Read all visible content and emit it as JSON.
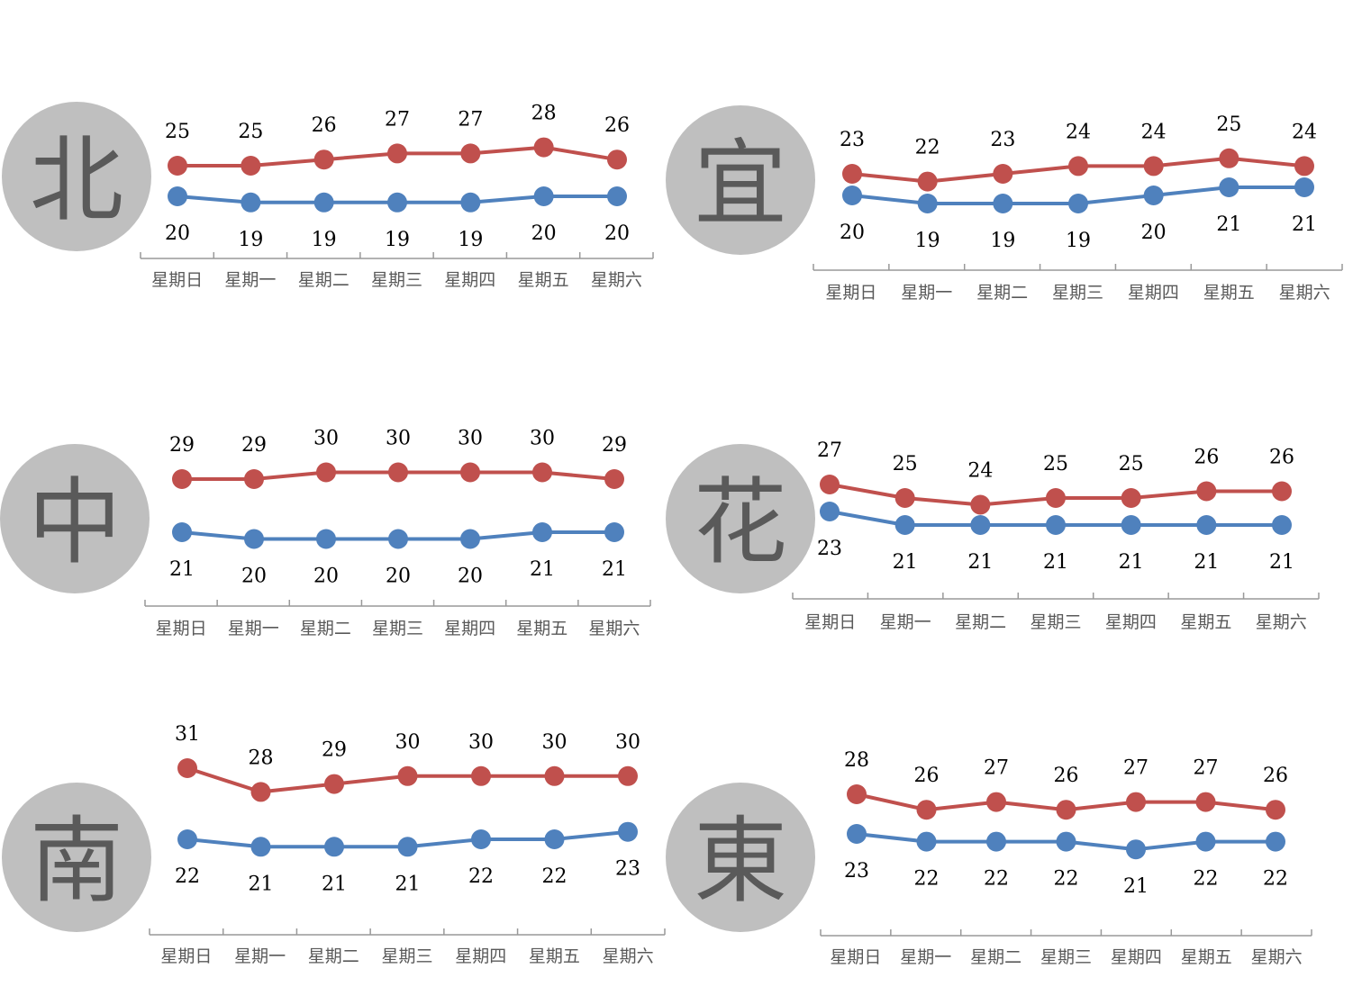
{
  "colors": {
    "high": "#c0504d",
    "low": "#4f81bd",
    "circle": "#bfbfbf",
    "axis": "#999999"
  },
  "chart_data": [
    {
      "type": "line",
      "region": "北",
      "categories": [
        "星期日",
        "星期一",
        "星期二",
        "星期三",
        "星期四",
        "星期五",
        "星期六"
      ],
      "series": [
        {
          "values": [
            25,
            25,
            26,
            27,
            27,
            28,
            26
          ]
        },
        {
          "values": [
            20,
            19,
            19,
            19,
            19,
            20,
            20
          ]
        }
      ]
    },
    {
      "type": "line",
      "region": "宜",
      "categories": [
        "星期日",
        "星期一",
        "星期二",
        "星期三",
        "星期四",
        "星期五",
        "星期六"
      ],
      "series": [
        {
          "values": [
            23,
            22,
            23,
            24,
            24,
            25,
            24
          ]
        },
        {
          "values": [
            20,
            19,
            19,
            19,
            20,
            21,
            21
          ]
        }
      ]
    },
    {
      "type": "line",
      "region": "中",
      "categories": [
        "星期日",
        "星期一",
        "星期二",
        "星期三",
        "星期四",
        "星期五",
        "星期六"
      ],
      "series": [
        {
          "values": [
            29,
            29,
            30,
            30,
            30,
            30,
            29
          ]
        },
        {
          "values": [
            21,
            20,
            20,
            20,
            20,
            21,
            21
          ]
        }
      ]
    },
    {
      "type": "line",
      "region": "花",
      "categories": [
        "星期日",
        "星期一",
        "星期二",
        "星期三",
        "星期四",
        "星期五",
        "星期六"
      ],
      "series": [
        {
          "values": [
            27,
            25,
            24,
            25,
            25,
            26,
            26
          ]
        },
        {
          "values": [
            23,
            21,
            21,
            21,
            21,
            21,
            21
          ]
        }
      ]
    },
    {
      "type": "line",
      "region": "南",
      "categories": [
        "星期日",
        "星期一",
        "星期二",
        "星期三",
        "星期四",
        "星期五",
        "星期六"
      ],
      "series": [
        {
          "values": [
            31,
            28,
            29,
            30,
            30,
            30,
            30
          ]
        },
        {
          "values": [
            22,
            21,
            21,
            21,
            22,
            22,
            23
          ]
        }
      ]
    },
    {
      "type": "line",
      "region": "東",
      "categories": [
        "星期日",
        "星期一",
        "星期二",
        "星期三",
        "星期四",
        "星期五",
        "星期六"
      ],
      "series": [
        {
          "values": [
            28,
            26,
            27,
            26,
            27,
            27,
            26
          ]
        },
        {
          "values": [
            23,
            22,
            22,
            22,
            21,
            22,
            22
          ]
        }
      ]
    }
  ]
}
